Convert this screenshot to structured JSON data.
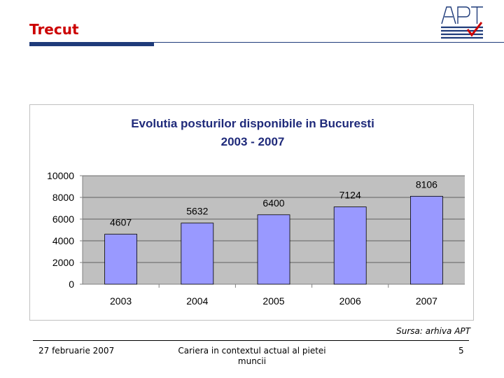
{
  "slide": {
    "title": "Trecut",
    "source": "Sursa: arhiva APT"
  },
  "footer": {
    "date": "27 februarie 2007",
    "center_line1": "Cariera in contextul actual al pietei",
    "center_line2": "muncii",
    "page": "5"
  },
  "logo": {
    "text": "APT",
    "icon": "apt-logo-icon",
    "colors": {
      "primary": "#1f3b7a",
      "check": "#cc0000"
    }
  },
  "colors": {
    "title": "#cc0000",
    "rule": "#1f3b7a",
    "chart_title": "#1f2a7a",
    "plot_bg": "#c0c0c0",
    "bar": "#9999ff"
  },
  "chart_data": {
    "type": "bar",
    "title": "Evolutia posturilor disponibile in Bucuresti",
    "subtitle": "2003 - 2007",
    "categories": [
      "2003",
      "2004",
      "2005",
      "2006",
      "2007"
    ],
    "values": [
      4607,
      5632,
      6400,
      7124,
      8106
    ],
    "ylim": [
      0,
      10000
    ],
    "yticks": [
      0,
      2000,
      4000,
      6000,
      8000,
      10000
    ],
    "grid": true,
    "legend": "none"
  }
}
